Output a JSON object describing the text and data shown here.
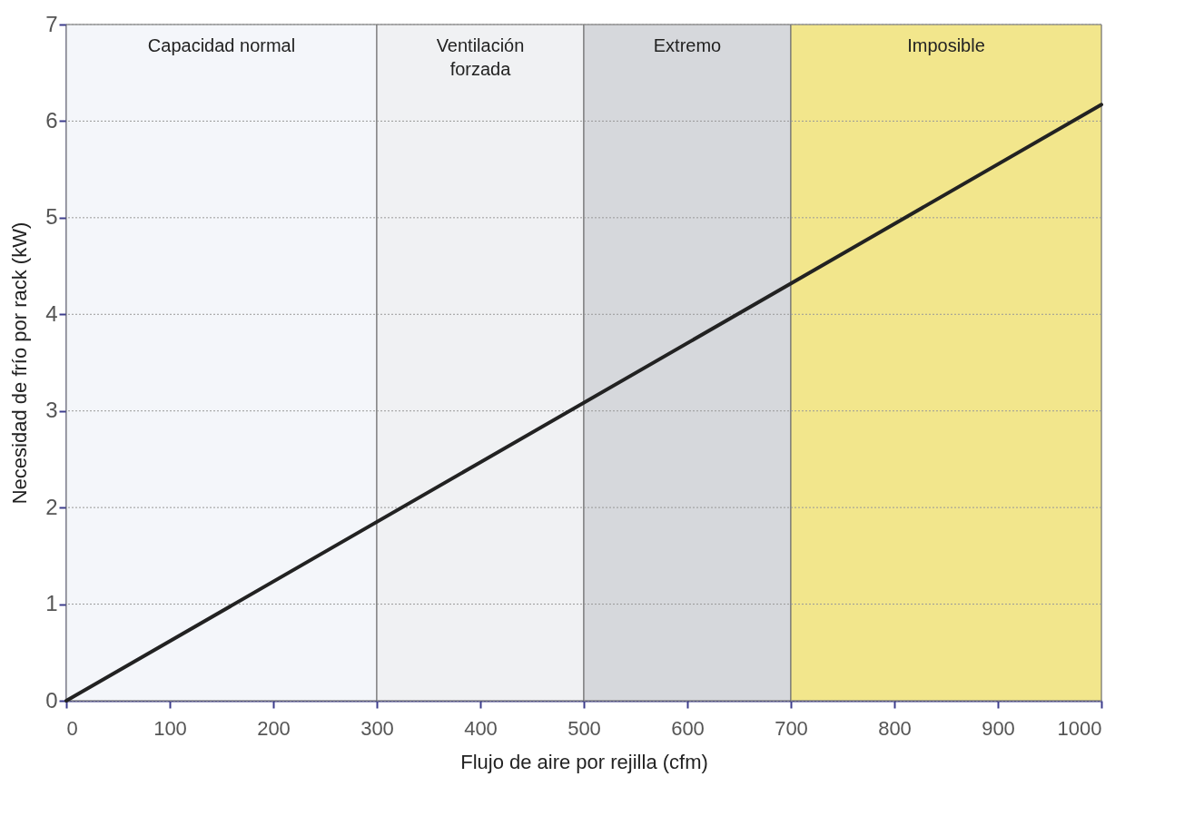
{
  "chart_data": {
    "type": "line",
    "xlabel": "Flujo de aire por rejilla (cfm)",
    "ylabel": "Necesidad de frío por rack (kW)",
    "x": [
      0,
      1000
    ],
    "series": [
      {
        "color": "#222222",
        "values": [
          0,
          6.17
        ]
      }
    ],
    "xlim": [
      0,
      1000
    ],
    "xticks": [
      0,
      100,
      200,
      300,
      400,
      500,
      600,
      700,
      800,
      900,
      1000
    ],
    "ylim": [
      0,
      7
    ],
    "yticks": [
      0,
      1,
      2,
      3,
      4,
      5,
      6,
      7
    ],
    "grid": "y",
    "bands": [
      {
        "axis": "x",
        "from": 0,
        "to": 300,
        "label": "Capacidad normal",
        "color": "#f4f6fa"
      },
      {
        "axis": "x",
        "from": 300,
        "to": 500,
        "label": "Ventilación\nforzada",
        "color": "#f0f1f3"
      },
      {
        "axis": "x",
        "from": 500,
        "to": 700,
        "label": "Extremo",
        "color": "#d6d8dc"
      },
      {
        "axis": "x",
        "from": 700,
        "to": 1000,
        "label": "Imposible",
        "color": "#f2e68c"
      }
    ]
  }
}
